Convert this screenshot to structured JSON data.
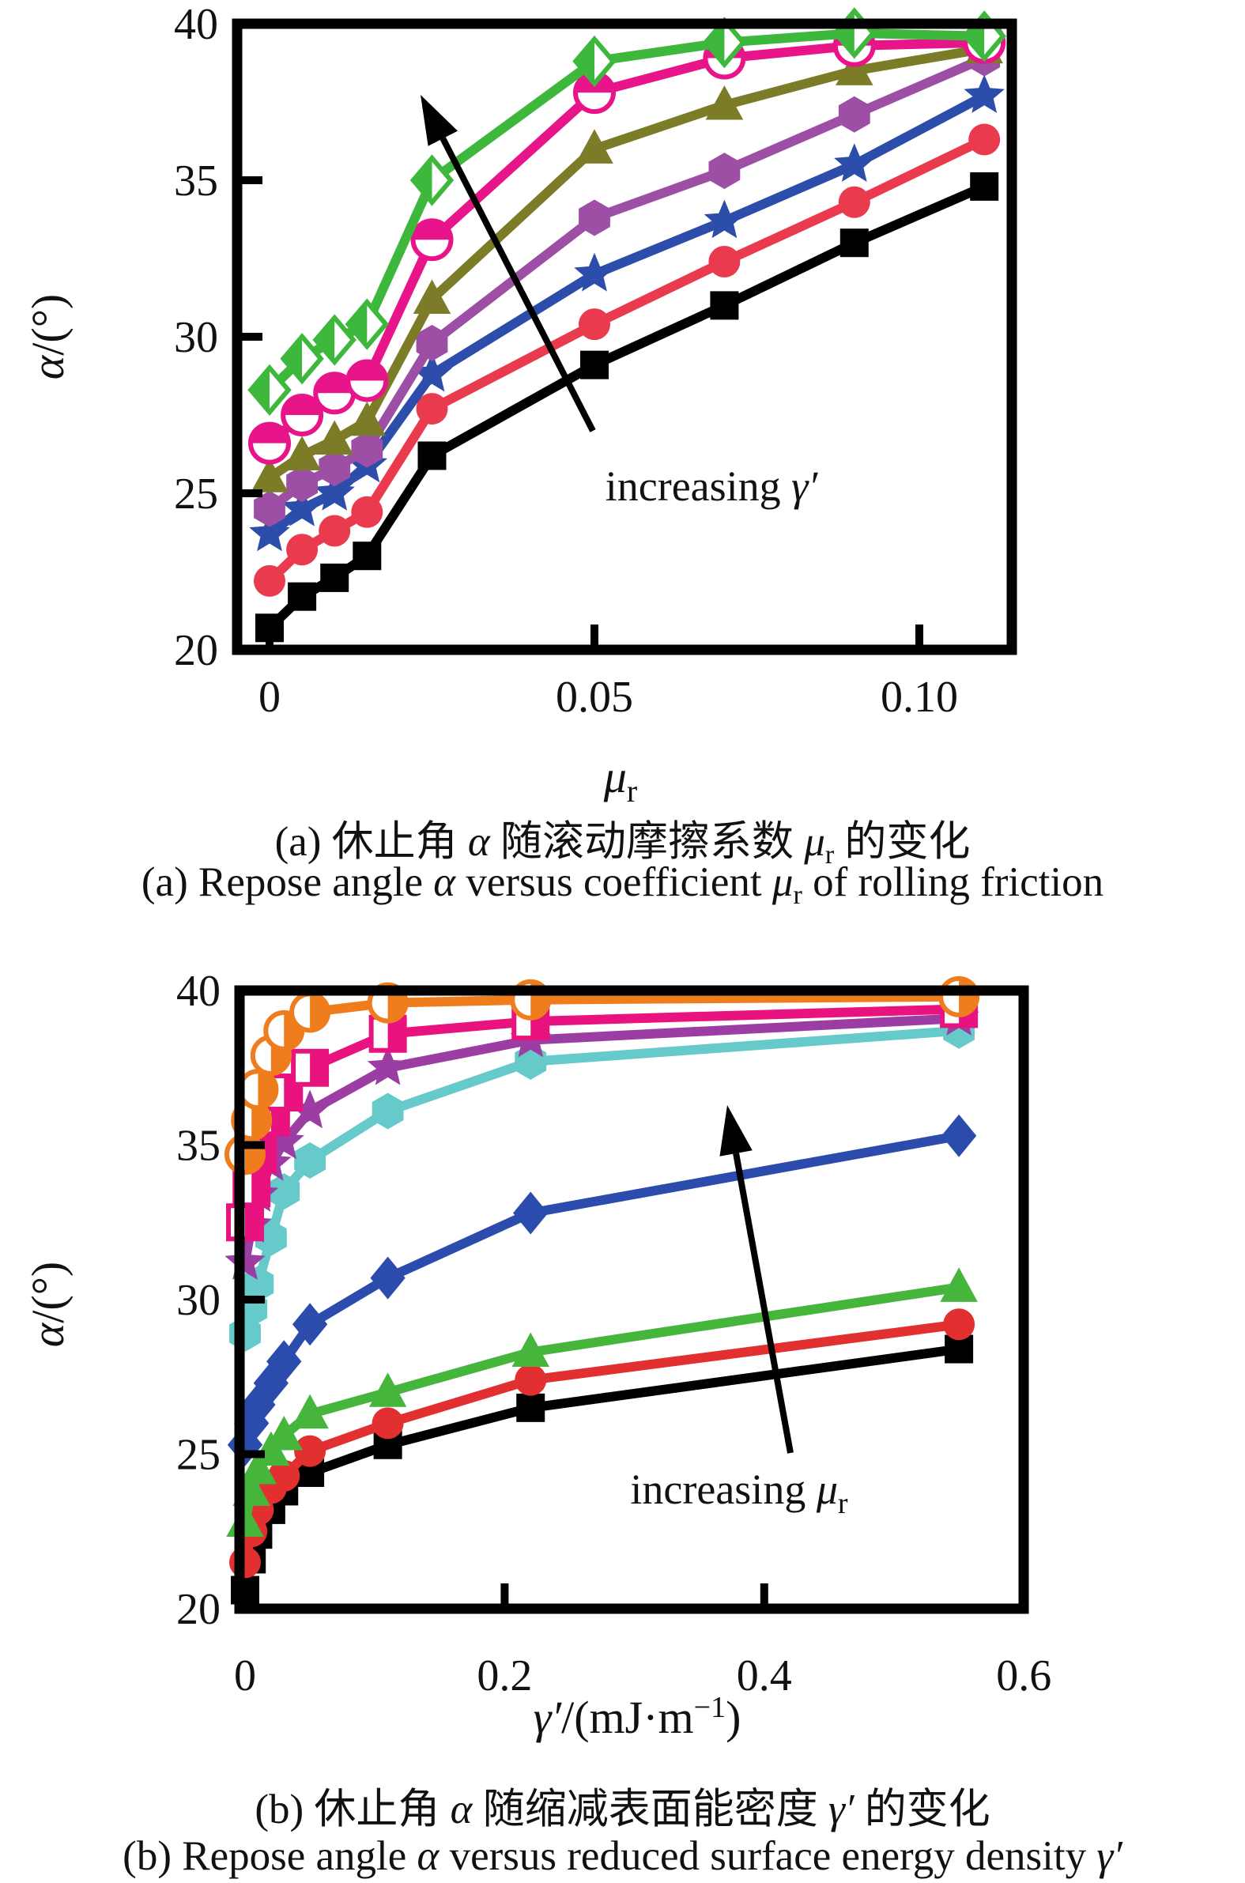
{
  "figure_type": "two-panel scientific line chart",
  "chart_data": [
    {
      "id": "a",
      "type": "line",
      "x_axis": {
        "symbol": "μ",
        "subscript": "r",
        "range": [
          -0.005,
          0.1155
        ],
        "ticks": [
          {
            "value": 0,
            "label": "0",
            "mark": true
          },
          {
            "value": 0.05,
            "label": "0.05",
            "mark": true
          },
          {
            "value": 0.1,
            "label": "0.10",
            "mark": true
          }
        ]
      },
      "y_axis": {
        "symbol": "α",
        "rest": "/(°)",
        "range": [
          20,
          40
        ],
        "ticks": [
          20,
          25,
          30,
          35,
          40
        ]
      },
      "annotation": {
        "prefix": "increasing ",
        "symbol": "γ′"
      },
      "legend": "none",
      "grid": false,
      "x": [
        0,
        0.005,
        0.01,
        0.015,
        0.025,
        0.05,
        0.07,
        0.09,
        0.11
      ],
      "series": [
        {
          "name": "gamma-level-1",
          "marker": "square",
          "color": "#000000",
          "values": [
            20.7,
            21.7,
            22.3,
            23.0,
            26.2,
            29.1,
            31.0,
            33.0,
            34.8
          ]
        },
        {
          "name": "gamma-level-2",
          "marker": "circle",
          "color": "#ea3b4e",
          "values": [
            22.2,
            23.2,
            23.8,
            24.4,
            27.7,
            30.4,
            32.4,
            34.3,
            36.3
          ]
        },
        {
          "name": "gamma-level-3",
          "marker": "star",
          "color": "#2c4da9",
          "values": [
            23.7,
            24.5,
            25.0,
            25.9,
            28.8,
            32.0,
            33.7,
            35.5,
            37.7
          ]
        },
        {
          "name": "gamma-level-4",
          "marker": "hexagon",
          "color": "#9c4fa5",
          "values": [
            24.5,
            25.3,
            25.8,
            26.4,
            29.8,
            33.8,
            35.3,
            37.1,
            38.9
          ]
        },
        {
          "name": "gamma-level-5",
          "marker": "triangle",
          "color": "#7c7c28",
          "values": [
            25.5,
            26.2,
            26.7,
            27.3,
            31.2,
            36.0,
            37.4,
            38.5,
            39.2
          ]
        },
        {
          "name": "gamma-level-6",
          "marker": "half-circle-top",
          "color": "#e7148a",
          "values": [
            26.6,
            27.5,
            28.2,
            28.6,
            33.1,
            37.8,
            38.9,
            39.3,
            39.4
          ]
        },
        {
          "name": "gamma-level-7",
          "marker": "half-diamond-left",
          "color": "#3eb83c",
          "values": [
            28.3,
            29.3,
            29.9,
            30.4,
            35.0,
            38.8,
            39.4,
            39.7,
            39.6
          ]
        }
      ]
    },
    {
      "id": "b",
      "type": "line",
      "x_axis": {
        "symbol": "γ′",
        "rest": "/(mJ·m",
        "sup": "−1",
        "close": ")",
        "range": [
          0,
          0.6
        ],
        "ticks": [
          {
            "value": 0,
            "label": "0",
            "mark": false
          },
          {
            "value": 0.2,
            "label": "0.2",
            "mark": true
          },
          {
            "value": 0.4,
            "label": "0.4",
            "mark": true
          },
          {
            "value": 0.6,
            "label": "0.6",
            "mark": false
          }
        ]
      },
      "y_axis": {
        "symbol": "α",
        "rest": "/(°)",
        "range": [
          20,
          40
        ],
        "ticks": [
          20,
          25,
          30,
          35,
          40
        ]
      },
      "annotation": {
        "prefix": "increasing ",
        "symbol": "μ",
        "subscript": "r"
      },
      "legend": "none",
      "grid": false,
      "x": [
        0,
        0.005,
        0.01,
        0.02,
        0.03,
        0.05,
        0.11,
        0.22,
        0.55
      ],
      "series": [
        {
          "name": "mu-level-1",
          "marker": "square",
          "color": "#000000",
          "values": [
            20.6,
            21.6,
            22.4,
            23.2,
            23.8,
            24.4,
            25.3,
            26.5,
            28.4
          ]
        },
        {
          "name": "mu-level-2",
          "marker": "circle",
          "color": "#e22f2f",
          "values": [
            21.5,
            22.5,
            23.2,
            23.9,
            24.3,
            25.1,
            26.0,
            27.4,
            29.2
          ]
        },
        {
          "name": "mu-level-3",
          "marker": "triangle",
          "color": "#46b53c",
          "values": [
            22.8,
            23.8,
            24.5,
            25.1,
            25.6,
            26.3,
            27.0,
            28.3,
            30.4
          ]
        },
        {
          "name": "mu-level-4",
          "marker": "diamond",
          "color": "#2b4bad",
          "values": [
            25.3,
            26.0,
            26.6,
            27.3,
            28.0,
            29.2,
            30.7,
            32.8,
            35.3
          ]
        },
        {
          "name": "mu-level-5",
          "marker": "hexagon",
          "color": "#66c9ca",
          "values": [
            28.9,
            29.7,
            30.5,
            32.0,
            33.5,
            34.5,
            36.1,
            37.7,
            38.7
          ]
        },
        {
          "name": "mu-level-6",
          "marker": "star",
          "color": "#9b3da3",
          "values": [
            31.2,
            32.4,
            33.4,
            34.4,
            35.1,
            36.1,
            37.5,
            38.4,
            39.1
          ]
        },
        {
          "name": "mu-level-7",
          "marker": "half-square-right",
          "color": "#e8137f",
          "values": [
            32.5,
            33.6,
            34.7,
            35.9,
            36.7,
            37.5,
            38.6,
            39.0,
            39.4
          ]
        },
        {
          "name": "mu-level-8",
          "marker": "half-circle-right",
          "color": "#ef7d1d",
          "values": [
            34.7,
            35.8,
            36.8,
            37.9,
            38.7,
            39.3,
            39.6,
            39.7,
            39.8
          ]
        }
      ]
    }
  ],
  "captions": {
    "a_zh": {
      "pre": "(a) 休止角 ",
      "sym1": "α",
      "mid": " 随滚动摩擦系数 ",
      "sym2": "μ",
      "sub": "r",
      "post": " 的变化"
    },
    "a_en": {
      "pre": "(a) Repose angle ",
      "sym1": "α",
      "mid": " versus coefficient ",
      "sym2": "μ",
      "sub": "r",
      "post": " of rolling friction"
    },
    "b_zh": {
      "pre": "(b) 休止角 ",
      "sym1": "α",
      "mid": " 随缩减表面能密度 ",
      "sym2": "γ′",
      "post": " 的变化"
    },
    "b_en": {
      "pre": "(b) Repose angle ",
      "sym1": "α",
      "mid": " versus reduced surface energy density ",
      "sym2": "γ′",
      "post": ""
    }
  }
}
